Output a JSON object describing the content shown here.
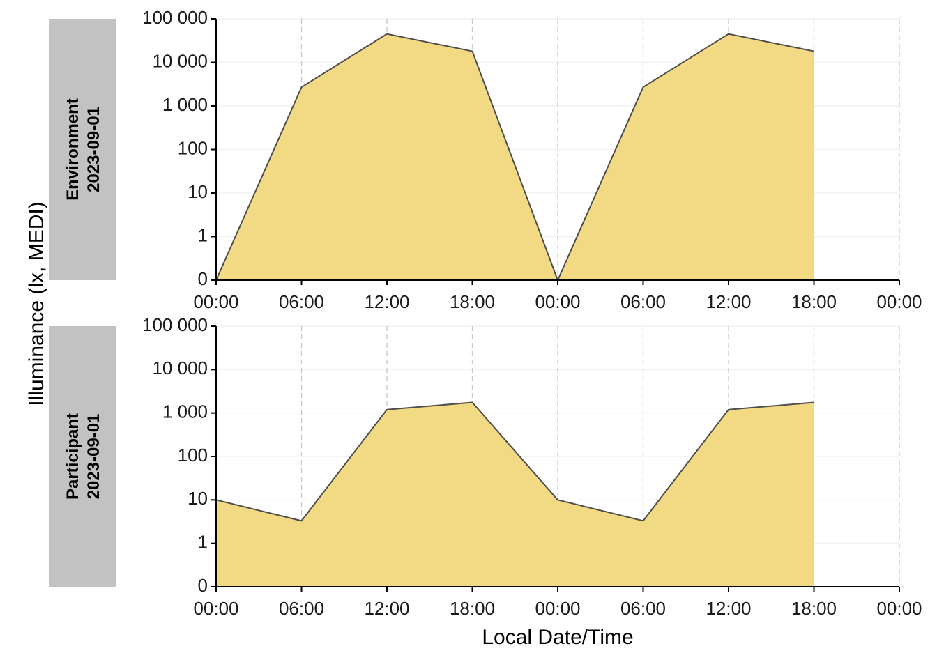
{
  "colors": {
    "fill": "#F2D983",
    "line": "#4D4D4D",
    "strip": "#C2C2C2",
    "hgrid": "#F2F2F2",
    "vgrid": "#C8C8C8",
    "axis": "#000000"
  },
  "chart_data": {
    "type": "area",
    "ylabel": "Illuminance (lx, MEDI)",
    "xlabel": "Local Date/Time",
    "y_scale": "symlog",
    "y_ticks": [
      0,
      1,
      10,
      100,
      1000,
      10000,
      100000
    ],
    "y_tick_labels": [
      "0",
      "1",
      "10",
      "100",
      "1 000",
      "10 000",
      "100 000"
    ],
    "x_tick_labels": [
      "00:00",
      "06:00",
      "12:00",
      "18:00",
      "00:00",
      "06:00",
      "12:00",
      "18:00",
      "00:00"
    ],
    "x_hours": [
      0,
      6,
      12,
      18,
      24,
      30,
      36,
      42,
      48
    ],
    "xlim_hours": [
      0,
      48
    ],
    "vertical_dashed_grid": true,
    "panels": [
      {
        "strip": [
          "Environment",
          "2023-09-01"
        ],
        "x_hours": [
          0,
          6,
          12,
          18,
          24,
          30,
          36,
          42
        ],
        "values": [
          0,
          2700,
          45000,
          18000,
          0,
          2700,
          45000,
          18000
        ]
      },
      {
        "strip": [
          "Participant",
          "2023-09-01"
        ],
        "x_hours": [
          0,
          6,
          12,
          18,
          24,
          30,
          36,
          42
        ],
        "values": [
          10,
          3.3,
          1200,
          1750,
          10,
          3.3,
          1200,
          1750
        ]
      }
    ]
  }
}
